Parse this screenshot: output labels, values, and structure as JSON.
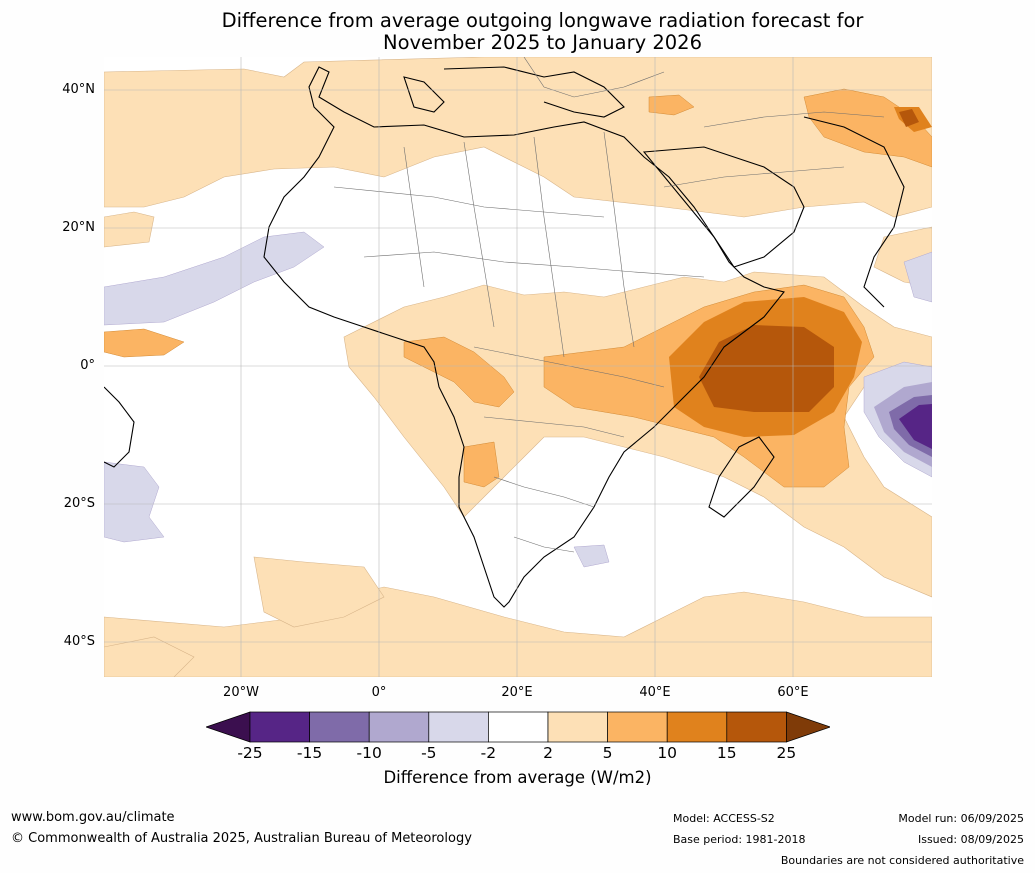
{
  "title": {
    "line1": "Difference from average outgoing longwave radiation forecast for",
    "line2": "November 2025 to January 2026"
  },
  "map": {
    "lat_labels": [
      "40°N",
      "20°N",
      "0°",
      "20°S",
      "40°S"
    ],
    "lon_labels": [
      "20°W",
      "0°",
      "20°E",
      "40°E",
      "60°E"
    ]
  },
  "colorbar": {
    "ticks": [
      "-25",
      "-15",
      "-10",
      "-5",
      "-2",
      "2",
      "5",
      "10",
      "15",
      "25"
    ],
    "colors": [
      "#3b0f4f",
      "#562586",
      "#7f6ba9",
      "#b0a8cf",
      "#d8d8ea",
      "#ffffff",
      "#fde0b6",
      "#fbb463",
      "#e0821d",
      "#b5570b",
      "#7f3b08"
    ],
    "label": "Difference from average (W/m2)"
  },
  "footer": {
    "url": "www.bom.gov.au/climate",
    "copyright": "© Commonwealth of Australia 2025, Australian Bureau of Meteorology",
    "model": "Model: ACCESS-S2",
    "base_period": "Base period: 1981-2018",
    "model_run": "Model run: 06/09/2025",
    "issued": "Issued: 08/09/2025",
    "disclaimer": "Boundaries are not considered authoritative"
  }
}
